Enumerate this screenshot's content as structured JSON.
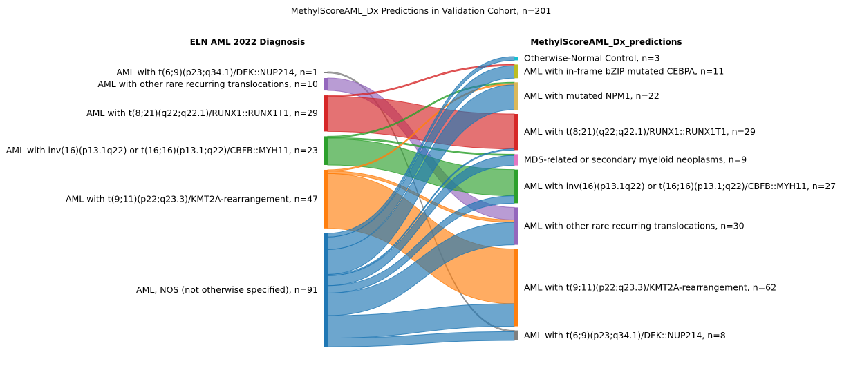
{
  "chart_data": {
    "type": "sankey",
    "title": "MethylScoreAML_Dx Predictions in Validation Cohort, n=201",
    "left_header": "ELN AML 2022 Diagnosis",
    "right_header": "MethylScoreAML_Dx_predictions",
    "sources": [
      {
        "key": "dek",
        "label": "AML with t(6;9)(p23;q34.1)/DEK::NUP214, n=1",
        "n": 1,
        "color": "#7f7f7f"
      },
      {
        "key": "rare",
        "label": "AML with other rare recurring translocations, n=10",
        "n": 10,
        "color": "#9467bd"
      },
      {
        "key": "runx",
        "label": "AML with t(8;21)(q22;q22.1)/RUNX1::RUNX1T1, n=29",
        "n": 29,
        "color": "#d62728"
      },
      {
        "key": "cbfb",
        "label": "AML with inv(16)(p13.1q22) or t(16;16)(p13.1;q22)/CBFB::MYH11, n=23",
        "n": 23,
        "color": "#2ca02c"
      },
      {
        "key": "kmt2a",
        "label": "AML with t(9;11)(p22;q23.3)/KMT2A-rearrangement, n=47",
        "n": 47,
        "color": "#ff7f0e"
      },
      {
        "key": "nos",
        "label": "AML, NOS (not otherwise specified), n=91",
        "n": 91,
        "color": "#1f77b4"
      }
    ],
    "targets": [
      {
        "key": "ctrl",
        "label": "Otherwise-Normal Control, n=3",
        "n": 3,
        "color": "#17becf"
      },
      {
        "key": "cebpa",
        "label": "AML with in-frame bZIP mutated CEBPA, n=11",
        "n": 11,
        "color": "#bcbd22"
      },
      {
        "key": "npm1",
        "label": "AML with mutated NPM1, n=22",
        "n": 22,
        "color": "#dbb85a"
      },
      {
        "key": "runx",
        "label": "AML with t(8;21)(q22;q22.1)/RUNX1::RUNX1T1, n=29",
        "n": 29,
        "color": "#d62728"
      },
      {
        "key": "mds",
        "label": "MDS-related or secondary myeloid neoplasms, n=9",
        "n": 9,
        "color": "#e377c2"
      },
      {
        "key": "cbfb",
        "label": "AML with inv(16)(p13.1q22) or t(16;16)(p13.1;q22)/CBFB::MYH11, n=27",
        "n": 27,
        "color": "#2ca02c"
      },
      {
        "key": "rare",
        "label": "AML with other rare recurring translocations, n=30",
        "n": 30,
        "color": "#9467bd"
      },
      {
        "key": "kmt2a",
        "label": "AML with t(9;11)(p22;q23.3)/KMT2A-rearrangement, n=62",
        "n": 62,
        "color": "#ff7f0e"
      },
      {
        "key": "dek",
        "label": "AML with t(6;9)(p23;q34.1)/DEK::NUP214, n=8",
        "n": 8,
        "color": "#7f7f7f"
      }
    ],
    "flows": [
      {
        "source": "dek",
        "target": "dek",
        "value": 1
      },
      {
        "source": "rare",
        "target": "rare",
        "value": 10
      },
      {
        "source": "runx",
        "target": "cebpa",
        "value": 1
      },
      {
        "source": "runx",
        "target": "runx",
        "value": 28
      },
      {
        "source": "cbfb",
        "target": "npm1",
        "value": 1
      },
      {
        "source": "cbfb",
        "target": "mds",
        "value": 1
      },
      {
        "source": "cbfb",
        "target": "cbfb",
        "value": 21
      },
      {
        "source": "kmt2a",
        "target": "npm1",
        "value": 1
      },
      {
        "source": "kmt2a",
        "target": "rare",
        "value": 2
      },
      {
        "source": "kmt2a",
        "target": "kmt2a",
        "value": 44
      },
      {
        "source": "nos",
        "target": "ctrl",
        "value": 3
      },
      {
        "source": "nos",
        "target": "cebpa",
        "value": 10
      },
      {
        "source": "nos",
        "target": "npm1",
        "value": 20
      },
      {
        "source": "nos",
        "target": "runx",
        "value": 1
      },
      {
        "source": "nos",
        "target": "mds",
        "value": 8
      },
      {
        "source": "nos",
        "target": "cbfb",
        "value": 6
      },
      {
        "source": "nos",
        "target": "rare",
        "value": 18
      },
      {
        "source": "nos",
        "target": "kmt2a",
        "value": 18
      },
      {
        "source": "nos",
        "target": "dek",
        "value": 7
      }
    ]
  }
}
